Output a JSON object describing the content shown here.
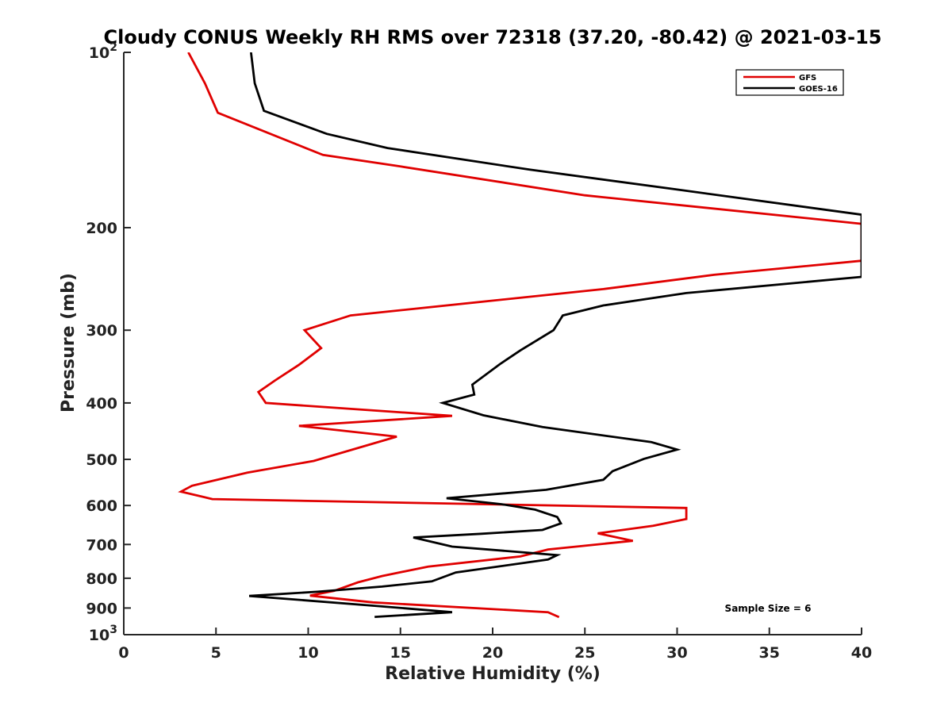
{
  "chart_data": {
    "type": "line",
    "title": "Cloudy CONUS Weekly RH RMS over 72318 (37.20, -80.42) @ 2021-03-15",
    "xlabel": "Relative Humidity (%)",
    "ylabel": "Pressure (mb)",
    "xlim": [
      0,
      40
    ],
    "ylim": [
      100,
      1000
    ],
    "yscale": "log",
    "y_inverted": true,
    "x_ticks": [
      0,
      5,
      10,
      15,
      20,
      25,
      30,
      35,
      40
    ],
    "x_tick_labels": [
      "0",
      "5",
      "10",
      "15",
      "20",
      "25",
      "30",
      "35",
      "40"
    ],
    "y_ticks": [
      100,
      200,
      300,
      400,
      500,
      600,
      700,
      800,
      900,
      1000
    ],
    "y_tick_labels": [
      {
        "base": "10",
        "exp": "2"
      },
      {
        "base": "200",
        "exp": ""
      },
      {
        "base": "300",
        "exp": ""
      },
      {
        "base": "400",
        "exp": ""
      },
      {
        "base": "500",
        "exp": ""
      },
      {
        "base": "600",
        "exp": ""
      },
      {
        "base": "700",
        "exp": ""
      },
      {
        "base": "800",
        "exp": ""
      },
      {
        "base": "900",
        "exp": ""
      },
      {
        "base": "10",
        "exp": "3"
      }
    ],
    "grid": false,
    "legend_position": "top-right",
    "annotation": "Sample Size = 6",
    "series": [
      {
        "name": "GFS",
        "color": "#e00000",
        "points": [
          [
            3.5,
            100
          ],
          [
            4.4,
            113
          ],
          [
            5.1,
            127
          ],
          [
            10.8,
            150
          ],
          [
            15.0,
            157
          ],
          [
            25.0,
            176
          ],
          [
            40,
            197
          ],
          [
            40,
            228
          ],
          [
            32.0,
            241
          ],
          [
            26.0,
            255
          ],
          [
            12.3,
            283
          ],
          [
            9.8,
            300
          ],
          [
            10.7,
            322
          ],
          [
            9.5,
            344
          ],
          [
            8.2,
            366
          ],
          [
            7.3,
            383
          ],
          [
            7.7,
            400
          ],
          [
            17.8,
            421
          ],
          [
            9.5,
            438
          ],
          [
            14.8,
            457
          ],
          [
            10.3,
            503
          ],
          [
            6.7,
            527
          ],
          [
            3.7,
            555
          ],
          [
            3.1,
            568
          ],
          [
            4.8,
            585
          ],
          [
            30.5,
            606
          ],
          [
            30.5,
            633
          ],
          [
            28.7,
            650
          ],
          [
            25.7,
            670
          ],
          [
            27.6,
            690
          ],
          [
            23.0,
            714
          ],
          [
            21.5,
            734
          ],
          [
            16.5,
            764
          ],
          [
            14.0,
            793
          ],
          [
            12.7,
            813
          ],
          [
            11.4,
            841
          ],
          [
            10.1,
            857
          ],
          [
            13.5,
            880
          ],
          [
            23.0,
            915
          ],
          [
            23.6,
            933
          ]
        ]
      },
      {
        "name": "GOES-16",
        "color": "#000000",
        "points": [
          [
            6.9,
            100
          ],
          [
            7.1,
            113
          ],
          [
            7.6,
            126
          ],
          [
            11.0,
            138
          ],
          [
            14.3,
            146
          ],
          [
            22.0,
            159
          ],
          [
            30.0,
            172
          ],
          [
            40,
            190
          ],
          [
            40,
            243
          ],
          [
            30.5,
            259
          ],
          [
            26.0,
            272
          ],
          [
            23.8,
            283
          ],
          [
            23.3,
            300
          ],
          [
            21.5,
            325
          ],
          [
            20.4,
            343
          ],
          [
            18.9,
            372
          ],
          [
            19.0,
            387
          ],
          [
            17.3,
            400
          ],
          [
            19.5,
            420
          ],
          [
            22.7,
            440
          ],
          [
            28.6,
            467
          ],
          [
            30.0,
            481
          ],
          [
            28.2,
            499
          ],
          [
            26.5,
            524
          ],
          [
            26.0,
            542
          ],
          [
            22.9,
            564
          ],
          [
            17.5,
            583
          ],
          [
            20.5,
            597
          ],
          [
            22.3,
            610
          ],
          [
            23.5,
            628
          ],
          [
            23.7,
            644
          ],
          [
            22.7,
            661
          ],
          [
            19.4,
            671
          ],
          [
            15.7,
            681
          ],
          [
            17.8,
            706
          ],
          [
            23.5,
            730
          ],
          [
            23.0,
            743
          ],
          [
            18.0,
            782
          ],
          [
            16.7,
            810
          ],
          [
            14.0,
            827
          ],
          [
            10.5,
            844
          ],
          [
            6.8,
            858
          ],
          [
            13.6,
            892
          ],
          [
            17.8,
            915
          ],
          [
            13.6,
            932
          ]
        ]
      }
    ]
  }
}
